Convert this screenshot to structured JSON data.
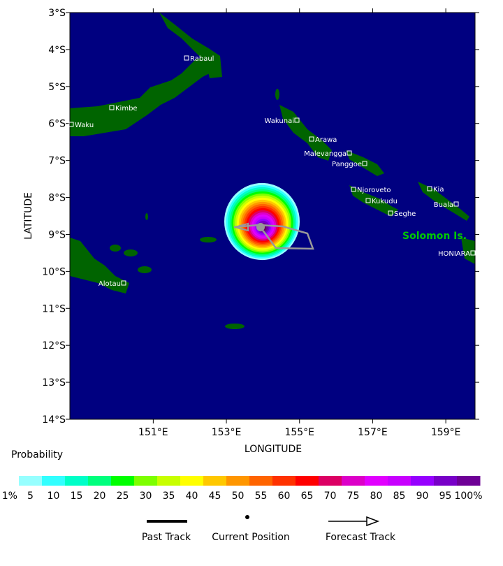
{
  "map": {
    "x_label": "LONGITUDE",
    "y_label": "LATITUDE",
    "lat_ticks": [
      {
        "value": -3,
        "label": "3°S"
      },
      {
        "value": -4,
        "label": "4°S"
      },
      {
        "value": -5,
        "label": "5°S"
      },
      {
        "value": -6,
        "label": "6°S"
      },
      {
        "value": -7,
        "label": "7°S"
      },
      {
        "value": -8,
        "label": "8°S"
      },
      {
        "value": -9,
        "label": "9°S"
      },
      {
        "value": -10,
        "label": "10°S"
      },
      {
        "value": -11,
        "label": "11°S"
      },
      {
        "value": -12,
        "label": "12°S"
      },
      {
        "value": -13,
        "label": "13°S"
      },
      {
        "value": -14,
        "label": "14°S"
      }
    ],
    "lon_ticks": [
      {
        "value": 151,
        "label": "151°E"
      },
      {
        "value": 153,
        "label": "153°E"
      },
      {
        "value": 155,
        "label": "155°E"
      },
      {
        "value": 157,
        "label": "157°E"
      },
      {
        "value": 159,
        "label": "159°E"
      }
    ],
    "places": [
      "Rabaul",
      "Kimbe",
      "Waku",
      "Wakunai",
      "Arawa",
      "Malevangga",
      "Panggoe",
      "Njoroveto",
      "Kia",
      "Kukudu",
      "Buala",
      "Seghe",
      "HONIARA",
      "Alotau"
    ],
    "region_label": "Solomon Is."
  },
  "colorbar": {
    "title": "Probability",
    "labels": [
      "1%",
      "5",
      "10",
      "15",
      "20",
      "25",
      "30",
      "35",
      "40",
      "45",
      "50",
      "55",
      "60",
      "65",
      "70",
      "75",
      "80",
      "85",
      "90",
      "95",
      "100%"
    ],
    "colors": [
      "#96ffff",
      "#32ffff",
      "#00ffc8",
      "#00ff7d",
      "#00ff00",
      "#7dff00",
      "#c8ff00",
      "#ffff00",
      "#ffc800",
      "#ff9600",
      "#ff6400",
      "#ff3200",
      "#ff0000",
      "#dc0064",
      "#dc00c8",
      "#e100ff",
      "#c800ff",
      "#9600ff",
      "#7800c8",
      "#6e0096",
      "#64005a"
    ]
  },
  "legend": [
    "Past Track",
    "Current Position",
    "Forecast Track"
  ]
}
